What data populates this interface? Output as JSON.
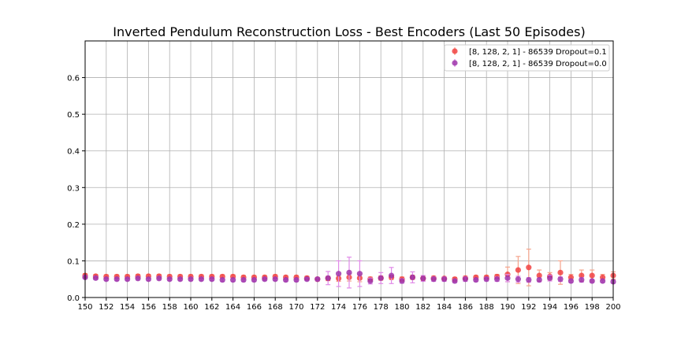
{
  "chart_data": {
    "type": "scatter",
    "title": "Inverted Pendulum Reconstruction Loss - Best Encoders (Last 50 Episodes)",
    "xlabel": "",
    "ylabel": "",
    "xlim": [
      150,
      200
    ],
    "ylim": [
      0,
      0.7
    ],
    "x_ticks": [
      150,
      152,
      154,
      156,
      158,
      160,
      162,
      164,
      166,
      168,
      170,
      172,
      174,
      176,
      178,
      180,
      182,
      184,
      186,
      188,
      190,
      192,
      194,
      196,
      198,
      200
    ],
    "y_ticks": [
      0.0,
      0.1,
      0.2,
      0.3,
      0.4,
      0.5,
      0.6
    ],
    "x_tick_labels": [
      "150",
      "152",
      "154",
      "156",
      "158",
      "160",
      "162",
      "164",
      "166",
      "168",
      "170",
      "172",
      "174",
      "176",
      "178",
      "180",
      "182",
      "184",
      "186",
      "188",
      "190",
      "192",
      "194",
      "196",
      "198",
      "200"
    ],
    "y_tick_labels": [
      "0.0",
      "0.1",
      "0.2",
      "0.3",
      "0.4",
      "0.5",
      "0.6"
    ],
    "grid": true,
    "legend_position": "top-right",
    "x": [
      150,
      151,
      152,
      153,
      154,
      155,
      156,
      157,
      158,
      159,
      160,
      161,
      162,
      163,
      164,
      165,
      166,
      167,
      168,
      169,
      170,
      171,
      172,
      173,
      174,
      175,
      176,
      177,
      178,
      179,
      180,
      181,
      182,
      183,
      184,
      185,
      186,
      187,
      188,
      189,
      190,
      191,
      192,
      193,
      194,
      195,
      196,
      197,
      198,
      199,
      200
    ],
    "series": [
      {
        "name": "[8, 128, 2, 1] - 86539 Dropout=0.1",
        "color": "#f03c3c",
        "error_color": "#f5a48c",
        "values": [
          0.06,
          0.058,
          0.057,
          0.057,
          0.057,
          0.058,
          0.058,
          0.058,
          0.057,
          0.057,
          0.057,
          0.057,
          0.057,
          0.057,
          0.057,
          0.055,
          0.055,
          0.055,
          0.057,
          0.055,
          0.055,
          0.053,
          0.05,
          0.052,
          0.052,
          0.055,
          0.053,
          0.05,
          0.053,
          0.055,
          0.05,
          0.055,
          0.052,
          0.053,
          0.052,
          0.05,
          0.053,
          0.055,
          0.055,
          0.057,
          0.063,
          0.075,
          0.082,
          0.06,
          0.058,
          0.068,
          0.055,
          0.06,
          0.06,
          0.055,
          0.06
        ],
        "errors": [
          0.005,
          0.005,
          0.005,
          0.005,
          0.005,
          0.005,
          0.005,
          0.005,
          0.005,
          0.005,
          0.005,
          0.005,
          0.005,
          0.005,
          0.005,
          0.005,
          0.005,
          0.005,
          0.005,
          0.005,
          0.005,
          0.005,
          0.005,
          0.006,
          0.008,
          0.01,
          0.01,
          0.006,
          0.006,
          0.006,
          0.006,
          0.006,
          0.006,
          0.005,
          0.005,
          0.005,
          0.005,
          0.005,
          0.005,
          0.006,
          0.02,
          0.037,
          0.05,
          0.015,
          0.01,
          0.032,
          0.008,
          0.015,
          0.015,
          0.008,
          0.01
        ]
      },
      {
        "name": "[8, 128, 2, 1] - 86539 Dropout=0.0",
        "color": "#9b2fa8",
        "error_color": "#e08ae8",
        "values": [
          0.055,
          0.053,
          0.05,
          0.05,
          0.05,
          0.052,
          0.05,
          0.052,
          0.05,
          0.05,
          0.05,
          0.05,
          0.05,
          0.048,
          0.048,
          0.048,
          0.048,
          0.05,
          0.05,
          0.048,
          0.048,
          0.05,
          0.05,
          0.053,
          0.065,
          0.068,
          0.065,
          0.045,
          0.053,
          0.06,
          0.045,
          0.055,
          0.052,
          0.05,
          0.05,
          0.045,
          0.05,
          0.048,
          0.05,
          0.05,
          0.053,
          0.05,
          0.048,
          0.048,
          0.053,
          0.05,
          0.045,
          0.048,
          0.045,
          0.045,
          0.043
        ],
        "errors": [
          0.004,
          0.004,
          0.004,
          0.004,
          0.004,
          0.004,
          0.004,
          0.004,
          0.004,
          0.004,
          0.004,
          0.004,
          0.004,
          0.004,
          0.004,
          0.004,
          0.004,
          0.004,
          0.004,
          0.004,
          0.004,
          0.004,
          0.004,
          0.018,
          0.035,
          0.042,
          0.035,
          0.008,
          0.015,
          0.022,
          0.006,
          0.015,
          0.008,
          0.006,
          0.006,
          0.004,
          0.006,
          0.004,
          0.005,
          0.006,
          0.01,
          0.008,
          0.006,
          0.005,
          0.008,
          0.006,
          0.004,
          0.006,
          0.004,
          0.004,
          0.004
        ]
      }
    ]
  }
}
